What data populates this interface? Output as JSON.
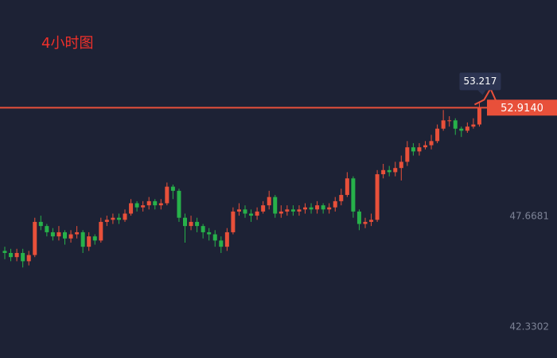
{
  "chart_data": {
    "type": "candlestick",
    "title": "4小时图",
    "open": [
      46.0,
      45.9,
      45.7,
      45.9,
      45.5,
      45.8,
      47.4,
      47.2,
      46.9,
      46.7,
      46.9,
      46.6,
      46.8,
      46.9,
      46.2,
      46.7,
      46.5,
      47.4,
      47.5,
      47.6,
      47.5,
      47.8,
      48.3,
      48.1,
      48.2,
      48.4,
      48.2,
      48.3,
      49.1,
      48.9,
      47.6,
      47.2,
      47.4,
      47.2,
      46.9,
      46.8,
      46.5,
      46.2,
      46.9,
      47.9,
      48.0,
      47.8,
      47.7,
      47.9,
      48.2,
      48.6,
      47.8,
      47.9,
      48.0,
      47.9,
      48.0,
      48.1,
      48.0,
      48.2,
      48.0,
      48.1,
      48.4,
      48.7,
      49.5,
      47.9,
      47.3,
      47.4,
      47.5,
      49.7,
      49.9,
      49.8,
      50.0,
      50.3,
      51.0,
      50.8,
      51.0,
      51.1,
      51.3,
      51.9,
      52.3,
      52.3,
      51.9,
      51.8,
      52.0,
      52.1
    ],
    "high": [
      46.2,
      46.1,
      46.1,
      46.1,
      46.0,
      47.6,
      47.7,
      47.3,
      47.1,
      47.2,
      47.0,
      47.0,
      47.2,
      47.0,
      46.9,
      46.8,
      47.6,
      47.7,
      47.8,
      47.8,
      48.0,
      48.5,
      48.4,
      48.4,
      48.6,
      48.5,
      48.5,
      49.3,
      49.2,
      49.0,
      47.8,
      47.7,
      47.6,
      47.3,
      47.1,
      47.0,
      46.7,
      47.1,
      48.1,
      48.3,
      48.2,
      48.0,
      48.1,
      48.4,
      48.9,
      48.7,
      48.2,
      48.2,
      48.2,
      48.2,
      48.3,
      48.3,
      48.4,
      48.3,
      48.3,
      48.6,
      49.0,
      49.8,
      49.6,
      48.0,
      47.6,
      47.8,
      49.9,
      50.2,
      50.1,
      50.3,
      50.6,
      51.3,
      51.2,
      51.2,
      51.3,
      51.6,
      52.1,
      52.8,
      52.5,
      52.4,
      52.0,
      52.2,
      52.4,
      53.217
    ],
    "low": [
      45.6,
      45.5,
      45.5,
      45.2,
      45.3,
      45.7,
      47.0,
      46.7,
      46.5,
      46.5,
      46.3,
      46.4,
      46.6,
      45.9,
      46.0,
      46.3,
      46.4,
      47.2,
      47.3,
      47.3,
      47.4,
      47.7,
      47.9,
      47.9,
      48.0,
      48.0,
      48.0,
      48.2,
      48.5,
      47.4,
      46.4,
      47.0,
      46.9,
      46.6,
      46.5,
      46.2,
      45.9,
      46.0,
      46.8,
      47.7,
      47.6,
      47.4,
      47.5,
      47.8,
      48.0,
      47.6,
      47.6,
      47.7,
      47.7,
      47.7,
      47.8,
      47.8,
      47.8,
      47.8,
      47.8,
      47.9,
      48.2,
      48.6,
      47.6,
      47.0,
      47.1,
      47.2,
      47.4,
      49.5,
      49.6,
      49.6,
      49.4,
      50.1,
      50.6,
      50.6,
      50.9,
      50.9,
      51.2,
      51.8,
      52.0,
      51.6,
      51.5,
      51.7,
      51.9,
      52.0
    ],
    "close": [
      45.9,
      45.7,
      45.9,
      45.5,
      45.8,
      47.4,
      47.2,
      46.9,
      46.7,
      46.9,
      46.6,
      46.8,
      46.9,
      46.2,
      46.7,
      46.5,
      47.4,
      47.5,
      47.6,
      47.5,
      47.8,
      48.3,
      48.1,
      48.2,
      48.4,
      48.2,
      48.3,
      49.1,
      48.9,
      47.6,
      47.2,
      47.4,
      47.2,
      46.9,
      46.8,
      46.5,
      46.2,
      46.9,
      47.9,
      48.0,
      47.8,
      47.7,
      47.9,
      48.2,
      48.6,
      47.8,
      47.9,
      48.0,
      47.9,
      48.0,
      48.1,
      48.0,
      48.2,
      48.0,
      48.1,
      48.4,
      48.7,
      49.5,
      47.9,
      47.3,
      47.4,
      47.5,
      49.7,
      49.9,
      49.8,
      50.0,
      50.3,
      51.0,
      50.8,
      51.0,
      51.1,
      51.3,
      51.9,
      52.3,
      52.3,
      51.9,
      51.8,
      52.0,
      52.1,
      52.914
    ],
    "last_price_label": "52.9140",
    "up_color": "#e8503a",
    "down_color": "#27b14a",
    "ylim": [
      40.83,
      58.11
    ],
    "yticks": [
      47.6681,
      42.3302
    ],
    "grid": false
  }
}
